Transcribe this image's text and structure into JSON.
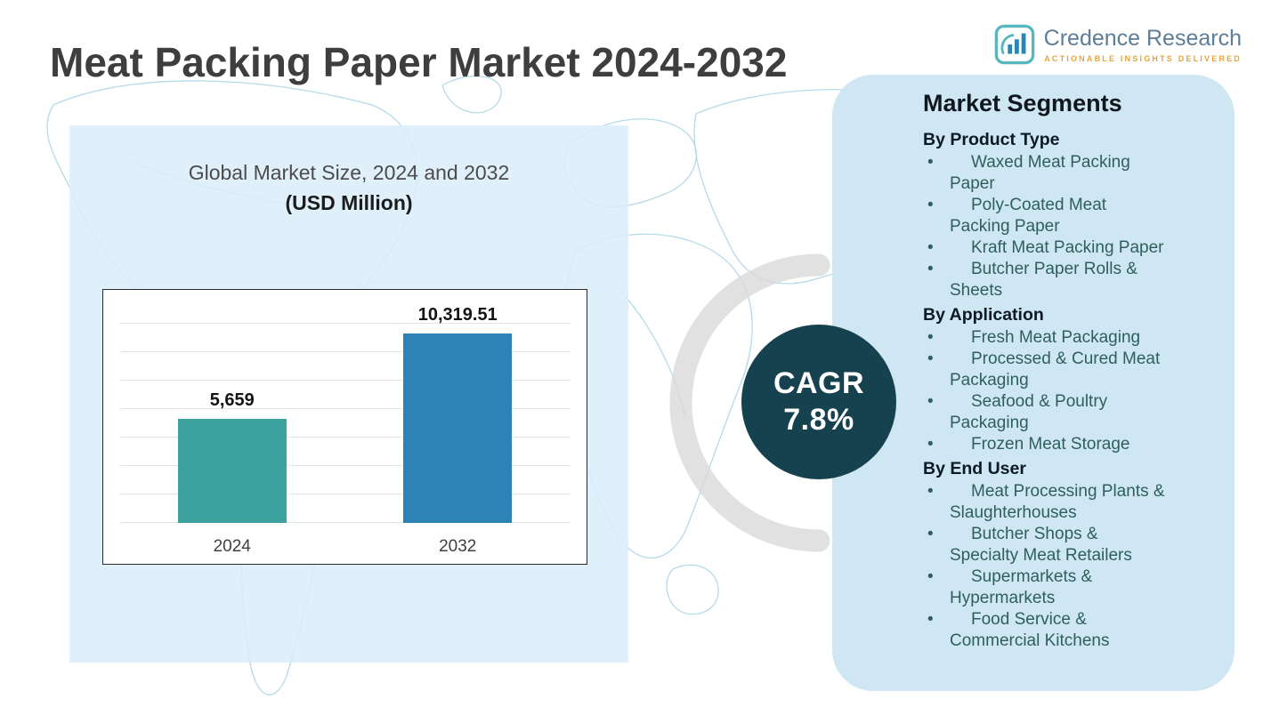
{
  "page": {
    "title": "Meat Packing Paper Market 2024-2032"
  },
  "logo": {
    "name": "Credence Research",
    "tagline": "ACTIONABLE INSIGHTS DELIVERED"
  },
  "chart_data": {
    "type": "bar",
    "title": "Global Market Size, 2024 and 2032",
    "subtitle": "(USD Million)",
    "categories": [
      "2024",
      "2032"
    ],
    "values": [
      5659,
      10319.51
    ],
    "value_labels": [
      "5,659",
      "10,319.51"
    ],
    "bar_colors": [
      "#3EA39E",
      "#2B84B5"
    ],
    "ylim": [
      0,
      12000
    ],
    "grid": true,
    "legend_position": "none",
    "xlabel": "",
    "ylabel": ""
  },
  "cagr": {
    "label": "CAGR",
    "value": "7.8%"
  },
  "segments": {
    "title": "Market Segments",
    "groups": [
      {
        "heading": "By Product Type",
        "items": [
          "Waxed Meat Packing Paper",
          "Poly-Coated Meat Packing Paper",
          "Kraft Meat Packing Paper",
          "Butcher Paper Rolls & Sheets"
        ]
      },
      {
        "heading": "By Application",
        "items": [
          "Fresh Meat Packaging",
          "Processed & Cured Meat Packaging",
          "Seafood & Poultry Packaging",
          "Frozen Meat Storage"
        ]
      },
      {
        "heading": "By End User",
        "items": [
          "Meat Processing Plants & Slaughterhouses",
          "Butcher Shops & Specialty Meat Retailers",
          "Supermarkets & Hypermarkets",
          "Food Service & Commercial Kitchens"
        ]
      }
    ]
  },
  "colors": {
    "panel_blue": "#CFE7F3",
    "chart_panel_blue": "#DBEDFA",
    "cagr_circle": "#16414F",
    "map_line": "#A9D3E6",
    "swoosh_gray": "#D9D9D9",
    "accent_orange": "#E8A33B",
    "bar_teal": "#3EA39E",
    "bar_blue": "#2B84B5",
    "title_gray": "#3E3E3E"
  }
}
